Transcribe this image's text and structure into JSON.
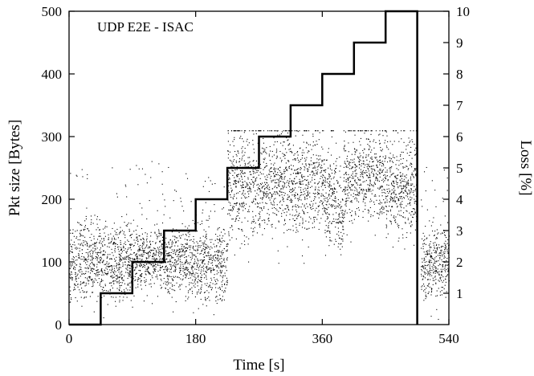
{
  "chart_data": {
    "type": "scatter",
    "title": "UDP E2E - ISAC",
    "xlabel": "Time [s]",
    "ylabel": "Pkt size [Bytes]",
    "y2label": "Loss [%]",
    "xlim": [
      0,
      540
    ],
    "ylim": [
      0,
      500
    ],
    "y2lim": [
      0,
      10
    ],
    "xticks": [
      "0",
      "180",
      "360",
      "540"
    ],
    "yticks": [
      "0",
      "100",
      "200",
      "300",
      "400",
      "500"
    ],
    "y2ticks": [
      "1",
      "2",
      "3",
      "4",
      "5",
      "6",
      "7",
      "8",
      "9",
      "10"
    ],
    "grid": false,
    "legend": "none",
    "series": [
      {
        "type": "step",
        "axis": "y2",
        "x": [
          0,
          45,
          45,
          90,
          90,
          135,
          135,
          180,
          180,
          225,
          225,
          270,
          270,
          315,
          315,
          360,
          360,
          405,
          405,
          450,
          450,
          495,
          495
        ],
        "values": [
          0,
          0,
          1,
          1,
          2,
          2,
          3,
          3,
          4,
          4,
          5,
          5,
          6,
          6,
          7,
          7,
          8,
          8,
          9,
          9,
          10,
          10,
          0
        ]
      },
      {
        "type": "scatter-band",
        "axis": "y",
        "x_start": [
          0,
          90,
          135,
          165,
          225,
          270,
          315,
          360,
          382,
          390,
          405,
          450,
          500
        ],
        "x_end": [
          90,
          135,
          165,
          225,
          270,
          315,
          360,
          382,
          390,
          405,
          450,
          495,
          540
        ],
        "center": [
          100,
          110,
          100,
          100,
          225,
          235,
          225,
          205,
          170,
          230,
          240,
          225,
          100
        ],
        "spread": [
          30,
          25,
          25,
          30,
          45,
          45,
          40,
          35,
          25,
          35,
          35,
          40,
          30
        ]
      }
    ],
    "colors": {
      "marks": "#000000",
      "background": "#ffffff"
    }
  }
}
